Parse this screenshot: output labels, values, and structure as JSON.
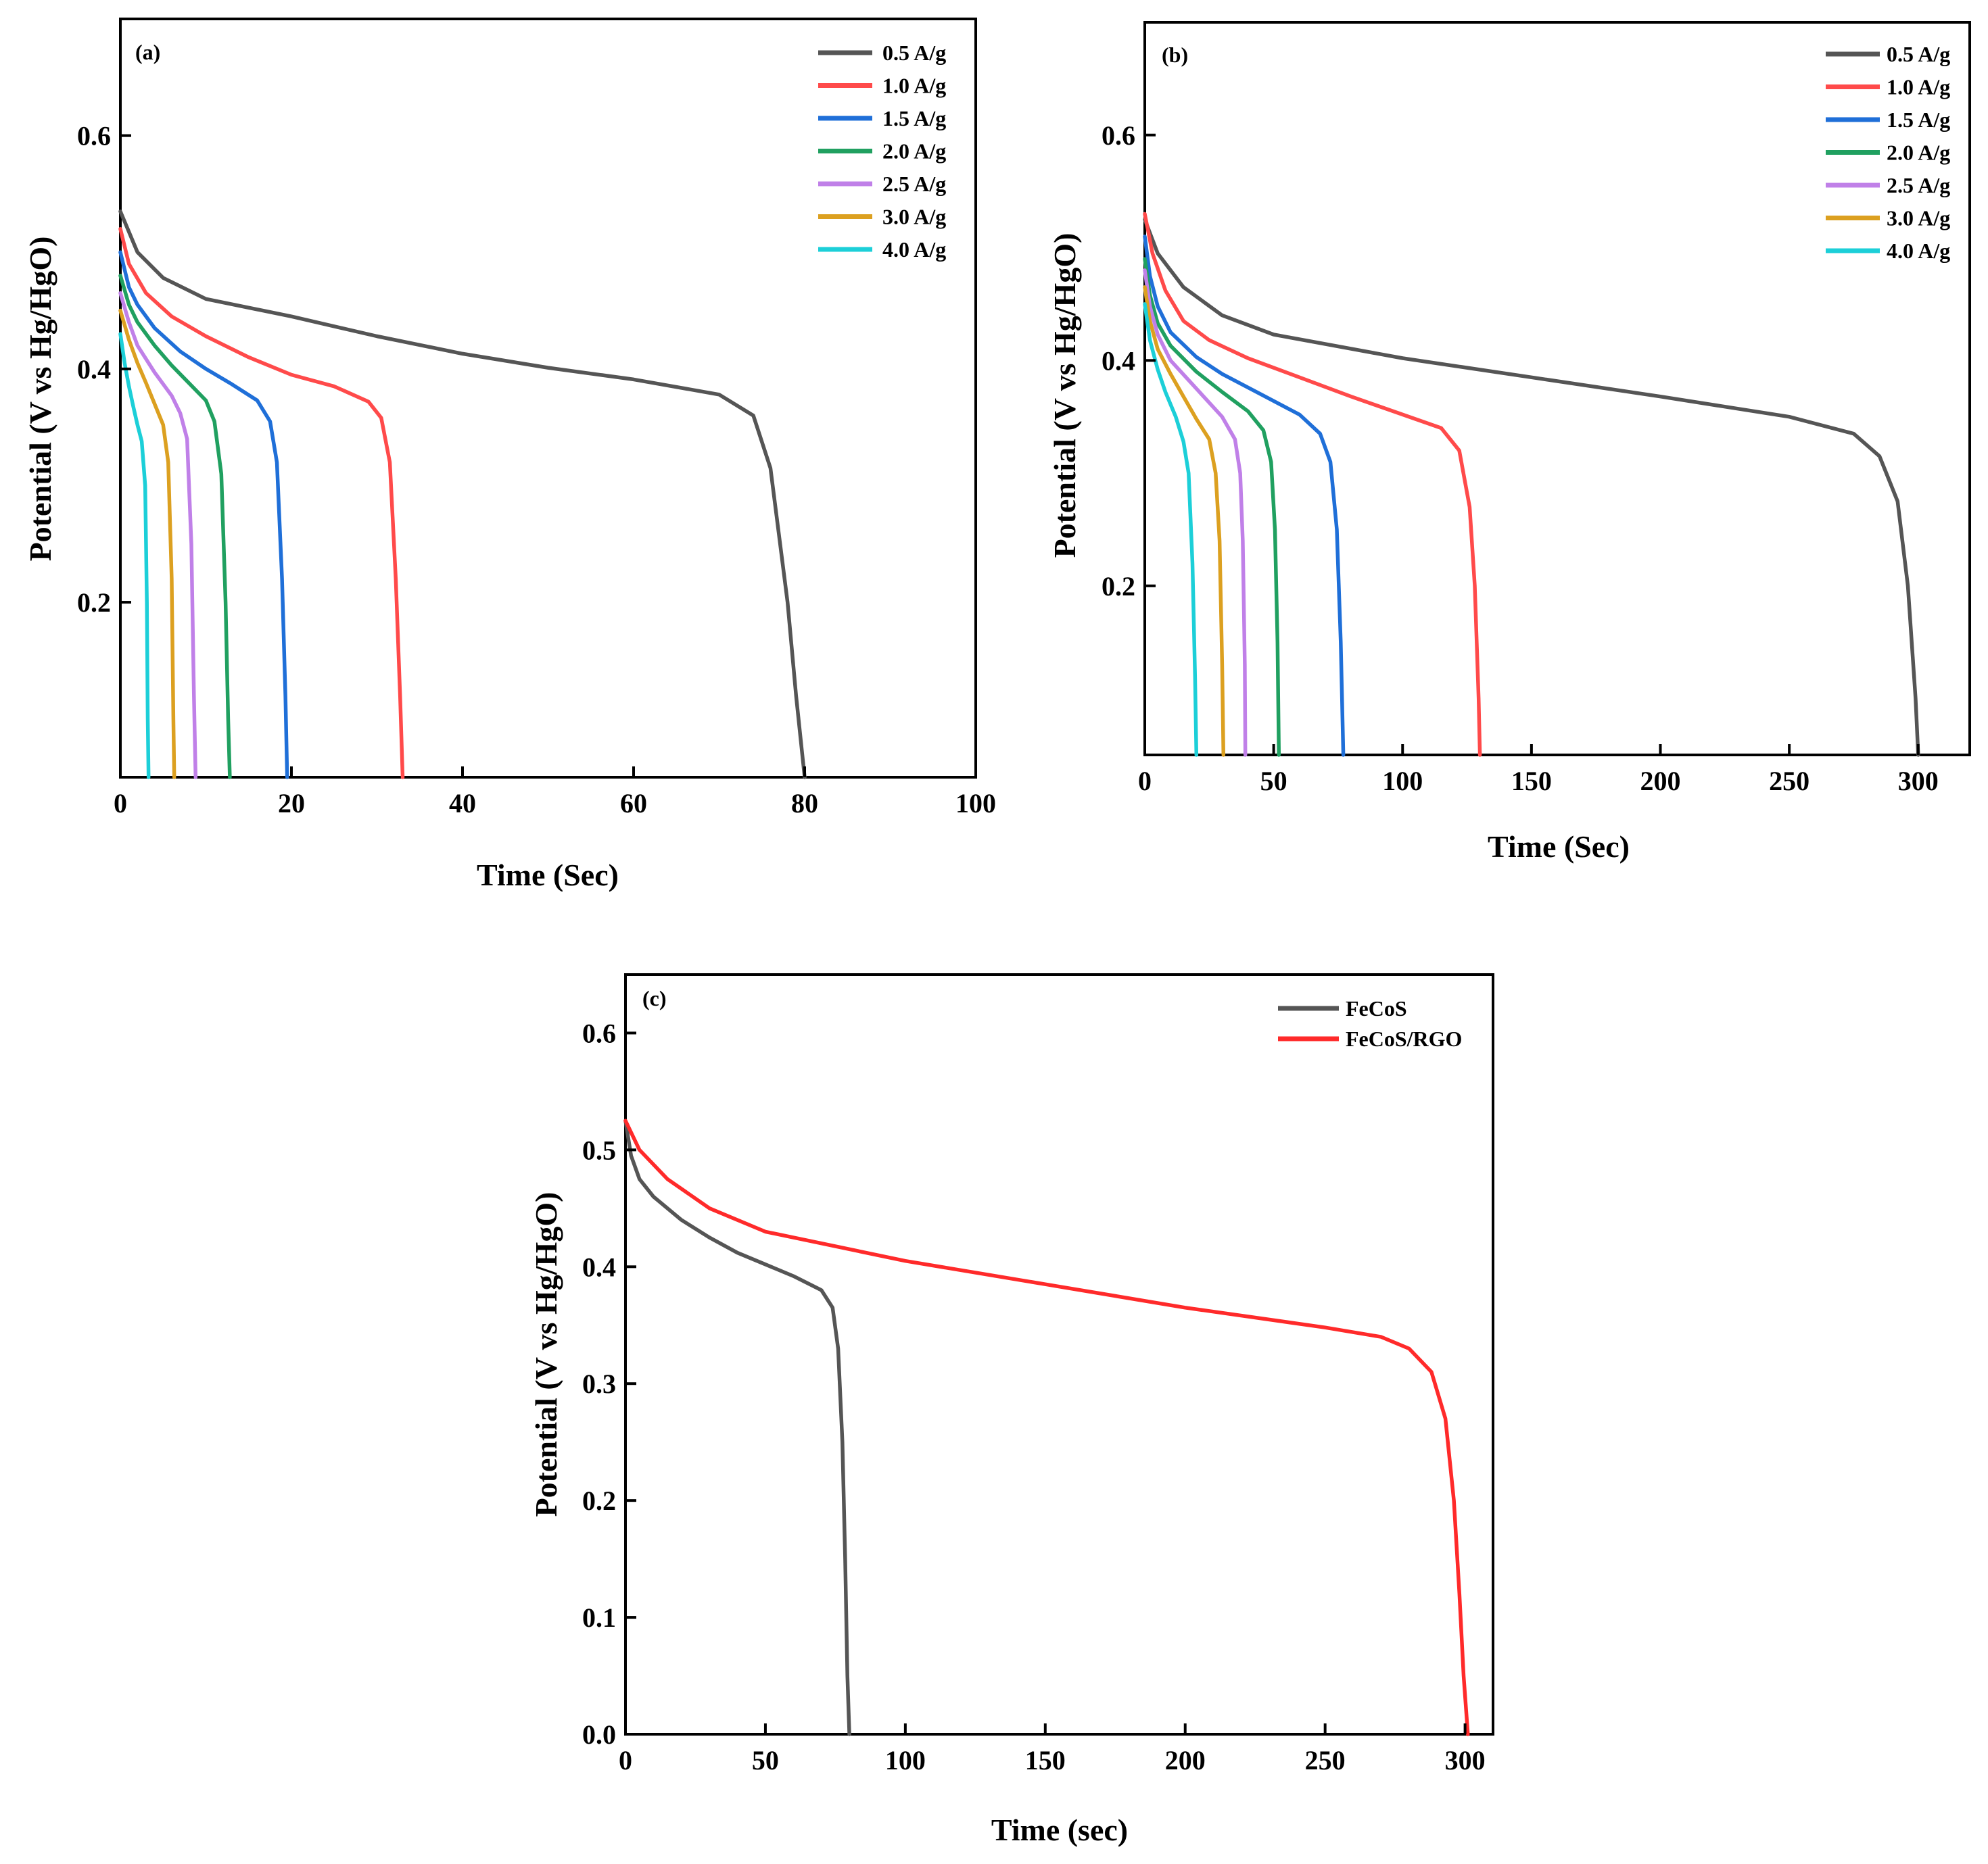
{
  "chart_data": [
    {
      "id": "a",
      "type": "line",
      "panel_label": "(a)",
      "xlabel": "Time (Sec)",
      "ylabel": "Potential (V vs Hg/HgO)",
      "xlim": [
        0,
        100
      ],
      "ylim": [
        0.05,
        0.7
      ],
      "xticks": [
        0,
        20,
        40,
        60,
        80,
        100
      ],
      "xtick_labels": [
        "0",
        "20",
        "40",
        "60",
        "80",
        "100"
      ],
      "yticks": [
        0.2,
        0.4,
        0.6
      ],
      "ytick_labels": [
        "0.2",
        "0.4",
        "0.6"
      ],
      "grid": false,
      "legend_position": "top-right",
      "series": [
        {
          "name": "0.5 A/g",
          "color": "#555555",
          "x": [
            0,
            2,
            5,
            10,
            20,
            30,
            40,
            50,
            60,
            70,
            74,
            76,
            78,
            79,
            80
          ],
          "y": [
            0.535,
            0.5,
            0.478,
            0.46,
            0.445,
            0.428,
            0.413,
            0.401,
            0.391,
            0.378,
            0.36,
            0.315,
            0.2,
            0.12,
            0.05
          ]
        },
        {
          "name": "1.0 A/g",
          "color": "#ff4a4a",
          "x": [
            0,
            1,
            3,
            6,
            10,
            15,
            20,
            25,
            29,
            30.5,
            31.5,
            32.2,
            32.7,
            33
          ],
          "y": [
            0.52,
            0.49,
            0.465,
            0.445,
            0.428,
            0.41,
            0.395,
            0.385,
            0.372,
            0.358,
            0.32,
            0.22,
            0.12,
            0.05
          ]
        },
        {
          "name": "1.5 A/g",
          "color": "#1f6fd8",
          "x": [
            0,
            1,
            2,
            4,
            7,
            10,
            13,
            16,
            17.5,
            18.3,
            18.9,
            19.3,
            19.5
          ],
          "y": [
            0.5,
            0.47,
            0.455,
            0.435,
            0.415,
            0.4,
            0.387,
            0.373,
            0.355,
            0.32,
            0.22,
            0.12,
            0.05
          ]
        },
        {
          "name": "2.0 A/g",
          "color": "#20a060",
          "x": [
            0,
            1,
            2,
            4,
            6,
            8,
            10,
            11,
            11.8,
            12.3,
            12.6,
            12.8
          ],
          "y": [
            0.48,
            0.455,
            0.44,
            0.42,
            0.403,
            0.388,
            0.373,
            0.355,
            0.31,
            0.2,
            0.1,
            0.05
          ]
        },
        {
          "name": "2.5 A/g",
          "color": "#c080e8",
          "x": [
            0,
            1,
            2,
            4,
            6,
            7,
            7.8,
            8.3,
            8.6,
            8.8
          ],
          "y": [
            0.465,
            0.44,
            0.42,
            0.397,
            0.377,
            0.362,
            0.34,
            0.25,
            0.12,
            0.05
          ]
        },
        {
          "name": "3.0 A/g",
          "color": "#dca020",
          "x": [
            0,
            1,
            2,
            3,
            4,
            5,
            5.6,
            6.0,
            6.2,
            6.3
          ],
          "y": [
            0.45,
            0.425,
            0.405,
            0.388,
            0.37,
            0.352,
            0.32,
            0.22,
            0.1,
            0.05
          ]
        },
        {
          "name": "4.0 A/g",
          "color": "#1ccfd8",
          "x": [
            0,
            0.5,
            1,
            1.5,
            2,
            2.5,
            2.9,
            3.1,
            3.2,
            3.3
          ],
          "y": [
            0.43,
            0.405,
            0.385,
            0.368,
            0.352,
            0.338,
            0.3,
            0.2,
            0.1,
            0.05
          ]
        }
      ]
    },
    {
      "id": "b",
      "type": "line",
      "panel_label": "(b)",
      "xlabel": "Time (Sec)",
      "ylabel": "Potential (V vs Hg/HgO)",
      "xlim": [
        0,
        320
      ],
      "ylim": [
        0.05,
        0.7
      ],
      "xticks": [
        0,
        50,
        100,
        150,
        200,
        250,
        300
      ],
      "xtick_labels": [
        "0",
        "50",
        "100",
        "150",
        "200",
        "250",
        "300"
      ],
      "yticks": [
        0.2,
        0.4,
        0.6
      ],
      "ytick_labels": [
        "0.2",
        "0.4",
        "0.6"
      ],
      "grid": false,
      "legend_position": "top-right",
      "series": [
        {
          "name": "0.5 A/g",
          "color": "#555555",
          "x": [
            0,
            5,
            15,
            30,
            50,
            100,
            150,
            200,
            250,
            275,
            285,
            292,
            296,
            299,
            300
          ],
          "y": [
            0.525,
            0.495,
            0.465,
            0.44,
            0.423,
            0.402,
            0.385,
            0.368,
            0.35,
            0.335,
            0.315,
            0.275,
            0.2,
            0.1,
            0.05
          ]
        },
        {
          "name": "1.0 A/g",
          "color": "#ff4a4a",
          "x": [
            0,
            3,
            8,
            15,
            25,
            40,
            60,
            80,
            100,
            115,
            122,
            126,
            128,
            129.5,
            130
          ],
          "y": [
            0.53,
            0.495,
            0.462,
            0.435,
            0.418,
            0.402,
            0.385,
            0.368,
            0.352,
            0.34,
            0.32,
            0.27,
            0.2,
            0.1,
            0.05
          ]
        },
        {
          "name": "1.5 A/g",
          "color": "#1f6fd8",
          "x": [
            0,
            2,
            5,
            10,
            20,
            30,
            45,
            60,
            68,
            72,
            74.5,
            76,
            77
          ],
          "y": [
            0.51,
            0.475,
            0.448,
            0.425,
            0.403,
            0.388,
            0.37,
            0.352,
            0.335,
            0.31,
            0.25,
            0.15,
            0.05
          ]
        },
        {
          "name": "2.0 A/g",
          "color": "#20a060",
          "x": [
            0,
            2,
            5,
            10,
            20,
            30,
            40,
            46,
            49,
            50.5,
            51.5,
            52
          ],
          "y": [
            0.49,
            0.458,
            0.433,
            0.413,
            0.39,
            0.372,
            0.355,
            0.338,
            0.31,
            0.25,
            0.15,
            0.05
          ]
        },
        {
          "name": "2.5 A/g",
          "color": "#c080e8",
          "x": [
            0,
            2,
            5,
            10,
            20,
            30,
            35,
            37,
            38,
            38.8,
            39
          ],
          "y": [
            0.48,
            0.448,
            0.423,
            0.4,
            0.375,
            0.35,
            0.33,
            0.3,
            0.24,
            0.13,
            0.05
          ]
        },
        {
          "name": "3.0 A/g",
          "color": "#dca020",
          "x": [
            0,
            2,
            5,
            10,
            15,
            20,
            25,
            27.5,
            29,
            30,
            30.5
          ],
          "y": [
            0.465,
            0.435,
            0.41,
            0.388,
            0.368,
            0.348,
            0.33,
            0.3,
            0.24,
            0.13,
            0.05
          ]
        },
        {
          "name": "4.0 A/g",
          "color": "#1ccfd8",
          "x": [
            0,
            2,
            5,
            8,
            12,
            15,
            17,
            18.5,
            19.5,
            20
          ],
          "y": [
            0.45,
            0.418,
            0.392,
            0.372,
            0.35,
            0.328,
            0.3,
            0.22,
            0.12,
            0.05
          ]
        }
      ]
    },
    {
      "id": "c",
      "type": "line",
      "panel_label": "(c)",
      "xlabel": "Time (sec)",
      "ylabel": "Potential (V vs Hg/HgO)",
      "xlim": [
        0,
        310
      ],
      "ylim": [
        0,
        0.65
      ],
      "xticks": [
        0,
        50,
        100,
        150,
        200,
        250,
        300
      ],
      "xtick_labels": [
        "0",
        "50",
        "100",
        "150",
        "200",
        "250",
        "300"
      ],
      "yticks": [
        0,
        0.1,
        0.2,
        0.3,
        0.4,
        0.5,
        0.6
      ],
      "ytick_labels": [
        "0.0",
        "0.1",
        "0.2",
        "0.3",
        "0.4",
        "0.5",
        "0.6"
      ],
      "grid": false,
      "legend_position": "top-right",
      "series": [
        {
          "name": "FeCoS",
          "color": "#555555",
          "x": [
            0,
            2,
            5,
            10,
            20,
            30,
            40,
            50,
            60,
            70,
            74,
            76,
            77.5,
            78.5,
            79.3,
            80
          ],
          "y": [
            0.525,
            0.495,
            0.475,
            0.46,
            0.44,
            0.425,
            0.412,
            0.402,
            0.392,
            0.38,
            0.365,
            0.33,
            0.25,
            0.15,
            0.05,
            0.0
          ]
        },
        {
          "name": "FeCoS/RGO",
          "color": "#ff2a2a",
          "x": [
            0,
            5,
            15,
            30,
            50,
            100,
            150,
            200,
            250,
            270,
            280,
            288,
            293,
            296,
            298,
            299.5,
            301
          ],
          "y": [
            0.525,
            0.5,
            0.475,
            0.45,
            0.43,
            0.405,
            0.385,
            0.365,
            0.348,
            0.34,
            0.33,
            0.31,
            0.27,
            0.2,
            0.12,
            0.05,
            0.0
          ]
        }
      ]
    }
  ]
}
